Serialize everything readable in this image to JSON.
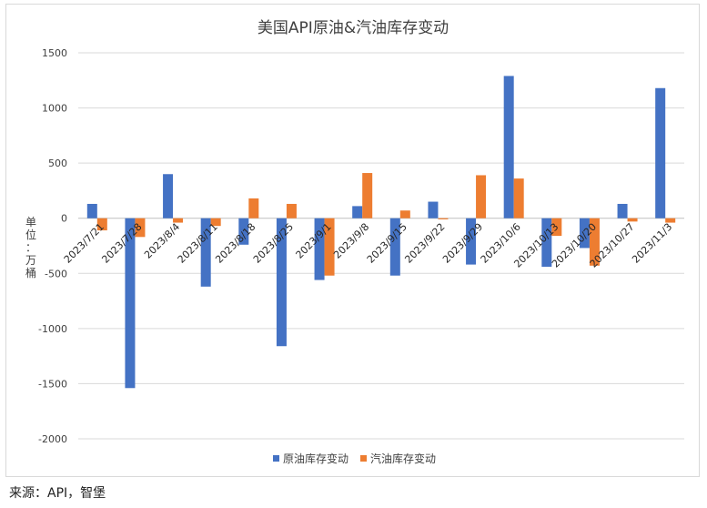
{
  "source_text": "来源：API，智堡",
  "chart_data": {
    "type": "bar",
    "title": "美国API原油&汽油库存变动",
    "ylabel": "单位：万桶",
    "ylim": [
      -2000,
      1500
    ],
    "ytick_step": 500,
    "grid": true,
    "legend_position": "bottom",
    "categories": [
      "2023/7/21",
      "2023/7/28",
      "2023/8/4",
      "2023/8/11",
      "2023/8/18",
      "2023/8/25",
      "2023/9/1",
      "2023/9/8",
      "2023/9/15",
      "2023/9/22",
      "2023/9/29",
      "2023/10/6",
      "2023/10/13",
      "2023/10/20",
      "2023/10/27",
      "2023/11/3"
    ],
    "series": [
      {
        "name": "原油库存变动",
        "color": "#4472c4",
        "values": [
          130,
          -1540,
          400,
          -620,
          -240,
          -1160,
          -560,
          110,
          -520,
          150,
          -420,
          1290,
          -440,
          -270,
          130,
          1180
        ]
      },
      {
        "name": "汽油库存变动",
        "color": "#ed7d31",
        "values": [
          -110,
          -170,
          -40,
          -70,
          180,
          130,
          -520,
          410,
          70,
          -10,
          390,
          360,
          -160,
          -430,
          -30,
          -40
        ]
      }
    ]
  }
}
